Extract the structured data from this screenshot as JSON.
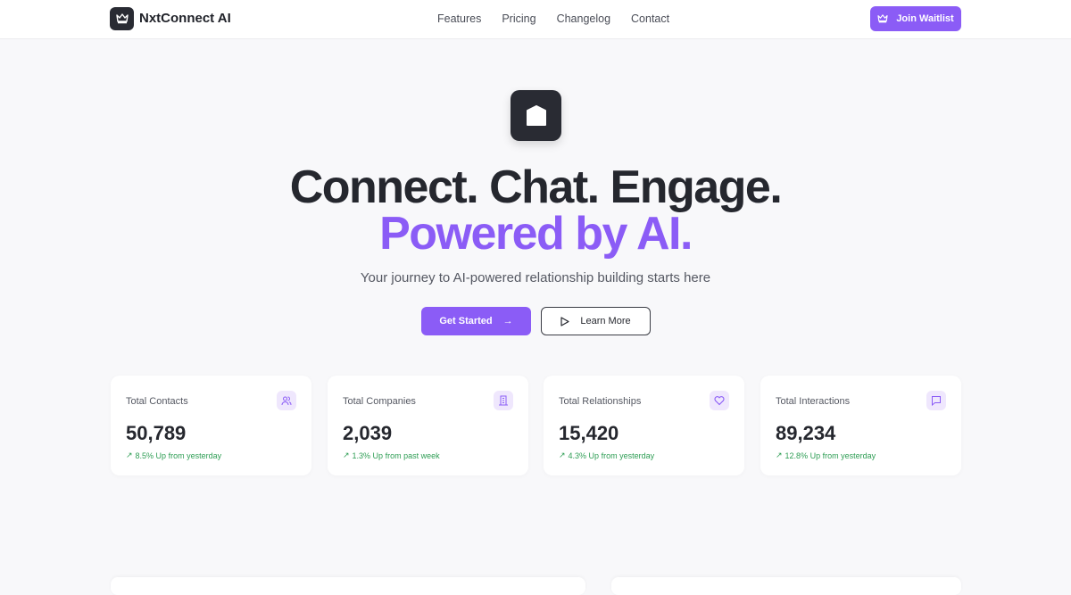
{
  "nav": {
    "brand": "NxtConnect AI",
    "links": [
      "Features",
      "Pricing",
      "Changelog",
      "Contact"
    ],
    "cta": "Join Waitlist"
  },
  "hero": {
    "line1": "Connect. Chat. Engage.",
    "line2": "Powered by AI.",
    "subtitle": "Your journey to AI-powered relationship building starts here",
    "primary": "Get Started",
    "secondary": "Learn More"
  },
  "stats": [
    {
      "title": "Total Contacts",
      "value": "50,789",
      "change": "8.5% Up from yesterday",
      "icon": "users-icon"
    },
    {
      "title": "Total Companies",
      "value": "2,039",
      "change": "1.3% Up from past week",
      "icon": "building-icon"
    },
    {
      "title": "Total Relationships",
      "value": "15,420",
      "change": "4.3% Up from yesterday",
      "icon": "heart-icon"
    },
    {
      "title": "Total Interactions",
      "value": "89,234",
      "change": "12.8% Up from yesterday",
      "icon": "message-icon"
    }
  ],
  "colors": {
    "accent": "#8b5cf6",
    "positive": "#2f9e55",
    "dark": "#292b33"
  }
}
